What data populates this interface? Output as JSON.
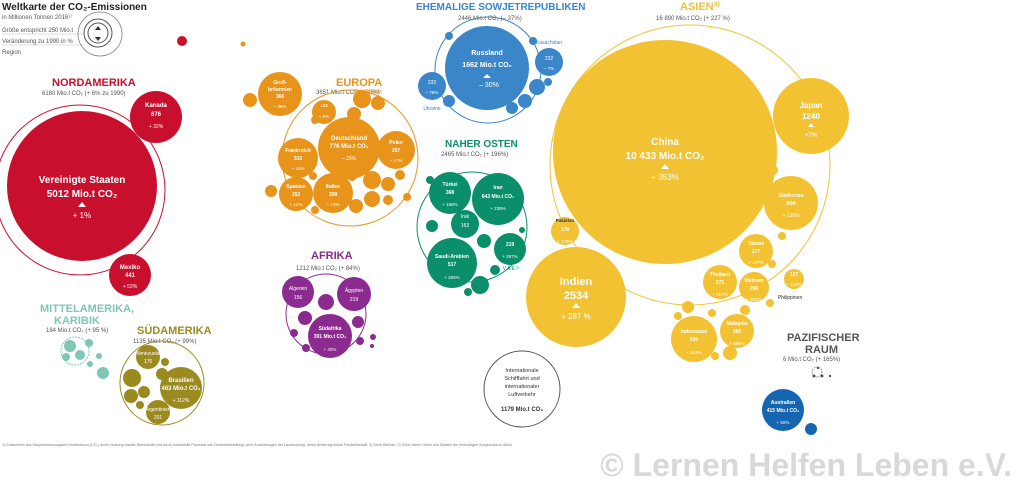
{
  "colors": {
    "nordamerika": "#c8102e",
    "europa": "#e8941a",
    "sowjet": "#3a86c8",
    "nahost": "#0a8f6a",
    "asien": "#f2c232",
    "afrika": "#8b2a8f",
    "mittelamerika": "#7ec6b6",
    "suedamerika": "#9a8a20",
    "pazifik": "#555555",
    "australien": "#1565b0"
  },
  "legend": {
    "title": "Weltkarte der CO₂-Emissionen",
    "subtitle": "in Millionen Tonnen 2016¹⁾",
    "size_text": "Größe entspricht 250 Mio.t",
    "change_text": "Veränderung zu 1990 in %",
    "region_text": "Region"
  },
  "regions": {
    "nordamerika": {
      "name": "NORDAMERIKA",
      "total": "6180 Mio.t CO₂ (+ 6% zu 1990)"
    },
    "europa": {
      "name": "EUROPA",
      "total": "3651 Mio.t CO₂ (– 20%)"
    },
    "sowjet": {
      "name": "EHEMALIGE SOWJETREPUBLIKEN",
      "total": "2446 Mio.t CO₂ (– 37%)"
    },
    "nahost": {
      "name": "NAHER OSTEN",
      "total": "2465 Mio.t CO₂ (+ 196%)"
    },
    "asien": {
      "name": "ASIEN³⁾",
      "total": "16 890 Mio.t CO₂ (+ 227 %)"
    },
    "afrika": {
      "name": "AFRIKA",
      "total": "1212 Mio.t CO₂ (+ 84%)"
    },
    "mittelamerika": {
      "name": "MITTELAMERIKA,",
      "name2": "KARIBIK",
      "total": "184 Mio.t CO₂ (+ 95 %)"
    },
    "suedamerika": {
      "name": "SÜDAMERIKA",
      "total": "1135 Mio.t CO₂ (+ 99%)"
    },
    "pazifik": {
      "name": "PAZIFISCHER",
      "name2": "RAUM",
      "total": "6 Mio.t CO₂ (+ 165%)"
    }
  },
  "countries": {
    "usa": {
      "name": "Vereinigte Staaten",
      "value": "5012 Mio.t CO₂",
      "change": "+ 1%"
    },
    "kanada": {
      "name": "Kanada",
      "value": "676",
      "change": "+ 32%"
    },
    "mexiko": {
      "name": "Mexiko",
      "value": "441",
      "change": "+ 53%"
    },
    "china": {
      "name": "China",
      "value": "10 433 Mio.t CO₂",
      "change": "+ 353%"
    },
    "indien": {
      "name": "Indien",
      "value": "2534",
      "change": "+ 287 %"
    },
    "japan": {
      "name": "Japan",
      "value": "1240",
      "change": "+7%"
    },
    "suedkorea": {
      "name": "Südkorea",
      "value": "604",
      "change": "+ 126%"
    },
    "taiwan": {
      "name": "Taiwan",
      "value": "277",
      "change": "+ 127%"
    },
    "thailand": {
      "name": "Thailand",
      "value": "271",
      "change": "+ 317%"
    },
    "vietnam": {
      "name": "Vietnam",
      "value": "206",
      "change": "+ 902%"
    },
    "indonesien": {
      "name": "Indonesien",
      "value": "530",
      "change": "+ 312%"
    },
    "malaysia": {
      "name": "Malaysia",
      "value": "266",
      "change": "+ 386%"
    },
    "pakistan": {
      "name": "Pakistan",
      "value": "178",
      "change": "+ 176%"
    },
    "philippinen": {
      "name": "Philippinen",
      "value": "127",
      "change": "+ 204%"
    },
    "russland": {
      "name": "Russland",
      "value": "1662 Mio.t CO₂",
      "change": "– 30%"
    },
    "kasachstan": {
      "name": "Kasachstan",
      "value": "232",
      "change": "– 7%"
    },
    "ukraine": {
      "name": "Ukraine",
      "value": "232",
      "change": "– 78%"
    },
    "deutschland": {
      "name": "Deutschland",
      "value": "776 Mio.t CO₂",
      "change": "– 25%"
    },
    "grossbritannien": {
      "name": "Groß-",
      "name2": "britannien",
      "value": "366",
      "change": "– 36%"
    },
    "frankreich": {
      "name": "Frankreich",
      "value": "332",
      "change": "– 18%"
    },
    "spanien": {
      "name": "Spanien",
      "value": "252",
      "change": "+ 12%"
    },
    "italien": {
      "name": "Italien",
      "value": "358",
      "change": "– 18%"
    },
    "polen": {
      "name": "Polen",
      "value": "297",
      "change": "– 17%"
    },
    "niederlande": {
      "name": "Niederlande",
      "value": "163",
      "change": "+ 5%"
    },
    "tuerkei": {
      "name": "Türkei",
      "value": "368",
      "change": "+ 166%"
    },
    "iran": {
      "name": "Iran",
      "value": "643 Mio.t CO₂",
      "change": "+ 239%"
    },
    "irak": {
      "name": "Irak",
      "value": "163",
      "change": ""
    },
    "saudiarabien": {
      "name": "Saudi-Arabien",
      "value": "517",
      "change": "+ 206%"
    },
    "vae": {
      "name": "V.A.E.²⁾",
      "value": "219",
      "change": "+ 287%"
    },
    "algerien": {
      "name": "Algerien",
      "value": "156",
      "change": ""
    },
    "aegypten": {
      "name": "Ägypten",
      "value": "219",
      "change": ""
    },
    "suedafrika": {
      "name": "Südafrika",
      "value": "391 Mio.t CO₂",
      "change": "+ 40%"
    },
    "venezuela": {
      "name": "Venezuela",
      "value": "176",
      "change": ""
    },
    "brasilien": {
      "name": "Brasilien",
      "value": "463 Mio.t CO₂",
      "change": "+ 112%"
    },
    "argentinien": {
      "name": "Argentinien",
      "value": "201",
      "change": ""
    },
    "australien": {
      "name": "Australien",
      "value": "415 Mio.t CO₂",
      "change": "+ 50%"
    }
  },
  "shipping": {
    "line1": "Internationale",
    "line2": "Schifffahrt und",
    "line3": "internationaler",
    "line4": "Luftverkehr",
    "value": "1179 Mio.t CO₂"
  },
  "footnote": "1) Emissionen des Hauptmeldhausgases Kohlendioxid (CO₂) durch Nutzung fossiler Brennstoffe und durch industrielle Prozesse wie Zementherstellung; ohne Auswirkungen der Landnutzung, deren Änderung sowie Forstwirtschaft. 2) Ohne Bahrain. 3) Ohne Naher Osten und Staaten der ehemaligen Sowjetunion in Asien.",
  "watermark": "© Lernen Helfen Leben e.V."
}
